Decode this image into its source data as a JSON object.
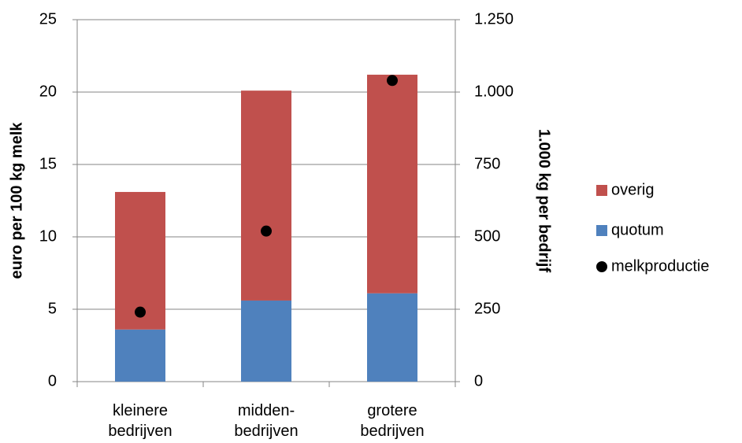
{
  "chart_data": {
    "type": "bar",
    "stacked": true,
    "categories": [
      "kleinere bedrijven",
      "midden-bedrijven",
      "grotere bedrijven"
    ],
    "series": [
      {
        "name": "quotum",
        "color": "#4f81bd",
        "values": [
          3.6,
          5.6,
          6.1
        ]
      },
      {
        "name": "overig",
        "color": "#c0504d",
        "values": [
          9.5,
          14.5,
          15.1
        ]
      },
      {
        "name": "melkproductie",
        "type": "scatter",
        "axis": "y2",
        "color": "#000000",
        "values": [
          240,
          520,
          1040
        ]
      }
    ],
    "ylabel": "euro per 100 kg melk",
    "y2label": "1.000 kg per bedrijf",
    "ylim": [
      0,
      25
    ],
    "yticks": [
      0,
      5,
      10,
      15,
      20,
      25
    ],
    "y2lim": [
      0,
      1250
    ],
    "y2ticks": [
      0,
      250,
      500,
      750,
      {
        "value": 1000,
        "label": "1.000"
      },
      {
        "value": 1250,
        "label": "1.250"
      }
    ],
    "grid": true,
    "legend": "right"
  }
}
